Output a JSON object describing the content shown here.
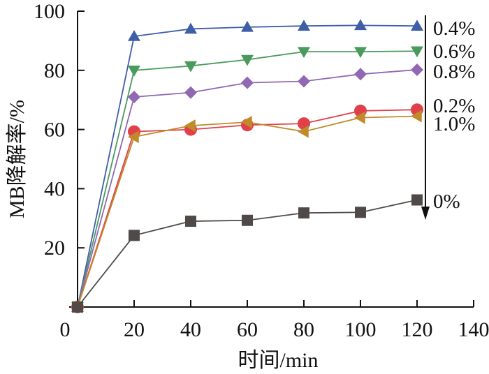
{
  "chart_data": {
    "type": "line",
    "title": "",
    "xlabel": "时间/min",
    "ylabel": "MB降解率/%",
    "xlim": [
      0,
      140
    ],
    "ylim": [
      0,
      100
    ],
    "xticks": [
      0,
      20,
      40,
      60,
      80,
      100,
      120,
      140
    ],
    "yticks": [
      20,
      40,
      60,
      80,
      100
    ],
    "x": [
      0,
      20,
      40,
      60,
      80,
      100,
      120
    ],
    "grid": false,
    "legend": "inline labels at right of lines, with downward arrow",
    "series": [
      {
        "name": "0.4%",
        "marker": "triangle-up",
        "color": "#3f5ea8",
        "values": [
          0,
          91.5,
          94,
          94.6,
          95,
          95.2,
          95
        ]
      },
      {
        "name": "0.6%",
        "marker": "triangle-down",
        "color": "#4a9a5e",
        "values": [
          0,
          80,
          81.5,
          83.6,
          86.3,
          86.3,
          86.5
        ]
      },
      {
        "name": "0.8%",
        "marker": "diamond",
        "color": "#9168b3",
        "values": [
          0,
          71,
          72.5,
          75.8,
          76.3,
          78.7,
          80.2
        ]
      },
      {
        "name": "0.2%",
        "marker": "circle",
        "color": "#e0404a",
        "values": [
          0,
          59.3,
          60,
          61.5,
          62,
          66.3,
          66.7
        ]
      },
      {
        "name": "1.0%",
        "marker": "triangle-left",
        "color": "#c08a2a",
        "values": [
          0,
          57.5,
          61.3,
          62.5,
          59.3,
          64,
          64.5
        ]
      },
      {
        "name": "0%",
        "marker": "square",
        "color": "#4f4a48",
        "values": [
          0,
          24.2,
          29,
          29.3,
          31.8,
          32,
          36.2
        ]
      }
    ],
    "annotations": [
      "0.4%",
      "0.6%",
      "0.8%",
      "0.2%",
      "1.0%",
      "0%"
    ],
    "arrow": "downward arrow at x=125 indicating series order"
  }
}
